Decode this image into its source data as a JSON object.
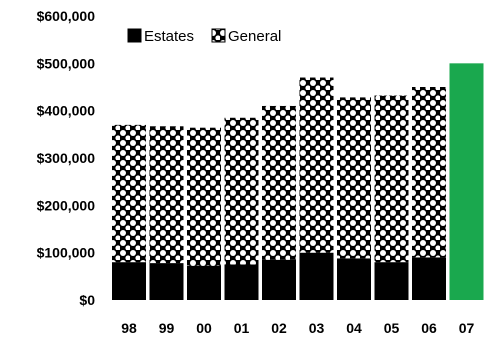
{
  "chart_data": {
    "type": "bar",
    "stacked": true,
    "categories": [
      "98",
      "99",
      "00",
      "01",
      "02",
      "03",
      "04",
      "05",
      "06",
      "07"
    ],
    "series": [
      {
        "name": "Estates",
        "values": [
          80000,
          78000,
          72000,
          75000,
          85000,
          100000,
          88000,
          80000,
          90000,
          null
        ],
        "color": "#000000",
        "pattern": "solid"
      },
      {
        "name": "General",
        "values": [
          290000,
          289000,
          292000,
          310000,
          325000,
          370000,
          340000,
          352000,
          360000,
          null
        ],
        "color": "#000000",
        "pattern": "dotted"
      }
    ],
    "total_only": {
      "category": "07",
      "value": 500000,
      "color": "#1aa84e"
    },
    "yticks": [
      "$0",
      "$100,000",
      "$200,000",
      "$300,000",
      "$400,000",
      "$500,000",
      "$600,000"
    ],
    "ylim": [
      0,
      600000
    ],
    "grid": false,
    "legend": "top"
  }
}
